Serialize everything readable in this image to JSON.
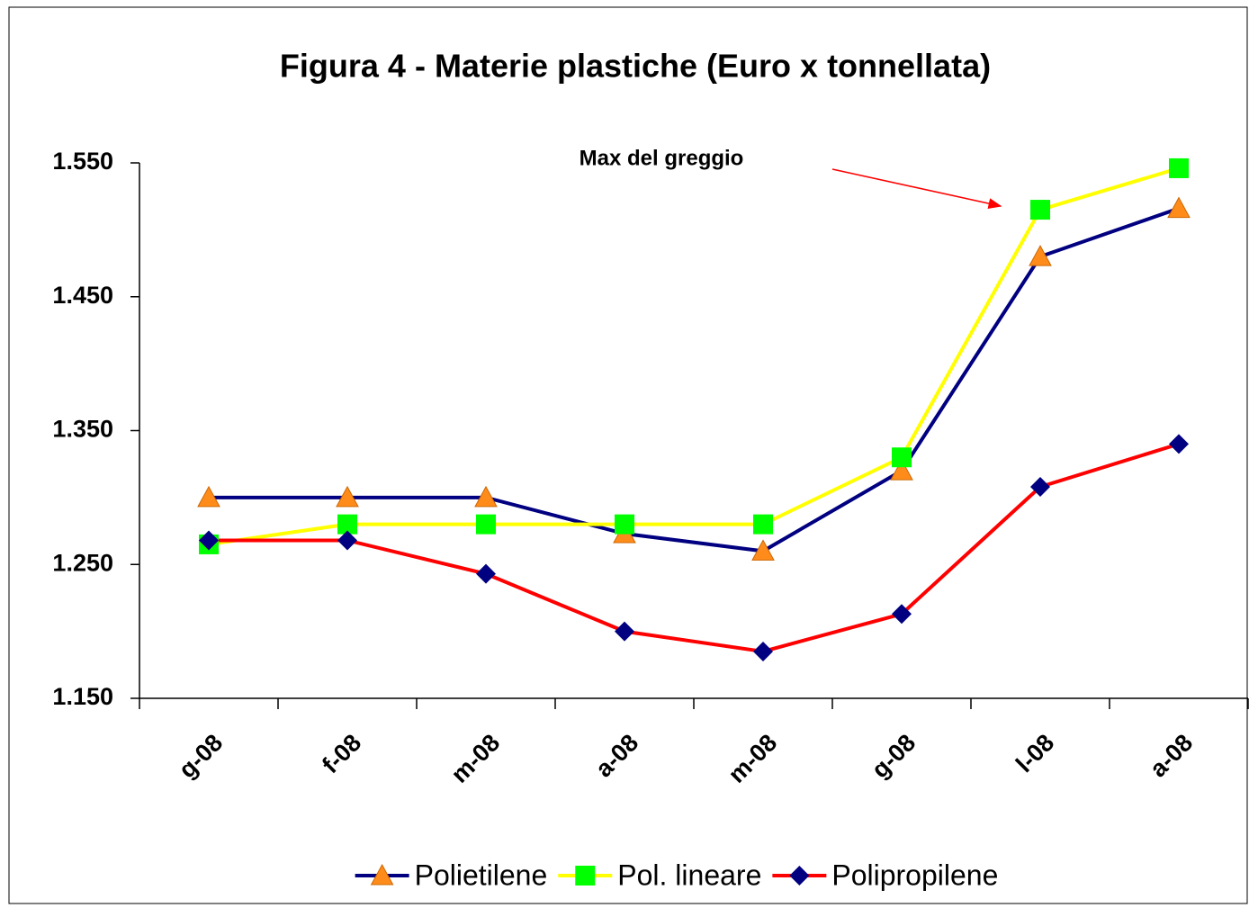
{
  "chart_data": {
    "type": "line",
    "title": "Figura 4 - Materie plastiche (Euro x tonnellata)",
    "categories": [
      "g-08",
      "f-08",
      "m-08",
      "a-08",
      "m-08",
      "g-08",
      "l-08",
      "a-08"
    ],
    "series": [
      {
        "name": "Polietilene",
        "color": "#000080",
        "marker": "triangle",
        "marker_color": "#ff8c1a",
        "values": [
          1300,
          1300,
          1300,
          1273,
          1260,
          1320,
          1480,
          1516
        ]
      },
      {
        "name": "Pol. lineare",
        "color": "#ffff00",
        "marker": "square",
        "marker_color": "#00ff00",
        "values": [
          1265,
          1280,
          1280,
          1280,
          1280,
          1330,
          1515,
          1546
        ]
      },
      {
        "name": "Polipropilene",
        "color": "#ff0000",
        "marker": "diamond",
        "marker_color": "#000080",
        "values": [
          1268,
          1268,
          1243,
          1200,
          1185,
          1213,
          1308,
          1340
        ]
      }
    ],
    "ylim": [
      1150,
      1550
    ],
    "yticks": [
      {
        "value": 1150,
        "label": "1.150"
      },
      {
        "value": 1250,
        "label": "1.250"
      },
      {
        "value": 1350,
        "label": "1.350"
      },
      {
        "value": 1450,
        "label": "1.450"
      },
      {
        "value": 1550,
        "label": "1.550"
      }
    ],
    "annotations": [
      {
        "text": "Max del greggio",
        "color": "#ff0000"
      }
    ],
    "legend": "bottom"
  }
}
